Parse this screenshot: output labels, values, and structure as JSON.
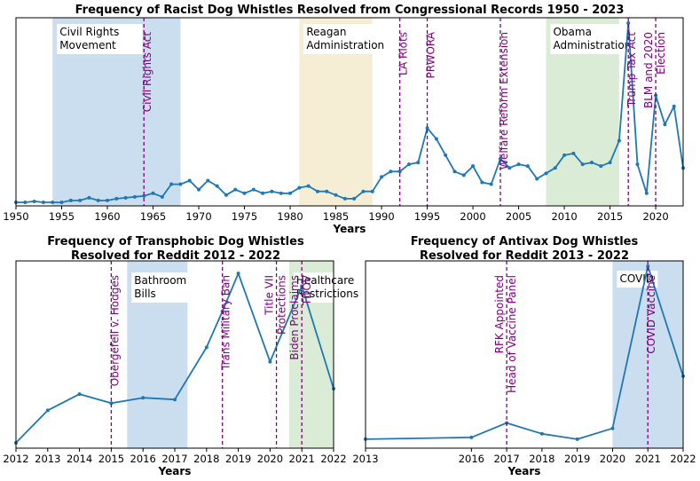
{
  "chart_data": [
    {
      "id": "racist",
      "type": "line",
      "title": "Frequency of Racist Dog Whistles Resolved from Congressional Records 1950 - 2023",
      "xlabel": "Years",
      "ylabel": "",
      "xlim": [
        1950,
        2023
      ],
      "ylim": [
        0,
        1
      ],
      "xticks": [
        1950,
        1955,
        1960,
        1965,
        1970,
        1975,
        1980,
        1985,
        1990,
        1995,
        2000,
        2005,
        2010,
        2015,
        2020
      ],
      "x": [
        1950,
        1951,
        1952,
        1953,
        1954,
        1955,
        1956,
        1957,
        1958,
        1959,
        1960,
        1961,
        1962,
        1963,
        1964,
        1965,
        1966,
        1967,
        1968,
        1969,
        1970,
        1971,
        1972,
        1973,
        1974,
        1975,
        1976,
        1977,
        1978,
        1979,
        1980,
        1981,
        1982,
        1983,
        1984,
        1985,
        1986,
        1987,
        1988,
        1989,
        1990,
        1991,
        1992,
        1993,
        1994,
        1995,
        1996,
        1997,
        1998,
        1999,
        2000,
        2001,
        2002,
        2003,
        2004,
        2005,
        2006,
        2007,
        2008,
        2009,
        2010,
        2011,
        2012,
        2013,
        2014,
        2015,
        2016,
        2017,
        2018,
        2019,
        2020,
        2021,
        2022,
        2023
      ],
      "values": [
        0.01,
        0.01,
        0.015,
        0.01,
        0.01,
        0.01,
        0.02,
        0.02,
        0.035,
        0.02,
        0.02,
        0.03,
        0.035,
        0.04,
        0.045,
        0.06,
        0.04,
        0.11,
        0.11,
        0.13,
        0.08,
        0.13,
        0.1,
        0.05,
        0.08,
        0.06,
        0.08,
        0.06,
        0.07,
        0.06,
        0.06,
        0.09,
        0.1,
        0.07,
        0.07,
        0.05,
        0.03,
        0.03,
        0.07,
        0.07,
        0.15,
        0.18,
        0.18,
        0.22,
        0.23,
        0.42,
        0.36,
        0.27,
        0.18,
        0.16,
        0.21,
        0.12,
        0.11,
        0.25,
        0.2,
        0.22,
        0.21,
        0.14,
        0.17,
        0.2,
        0.27,
        0.28,
        0.22,
        0.23,
        0.21,
        0.23,
        0.35,
        1.0,
        0.22,
        0.06,
        0.6,
        0.44,
        0.54,
        0.2
      ],
      "spans": [
        {
          "start": 1954,
          "end": 1968,
          "label_lines": [
            "Civil Rights",
            "Movement"
          ],
          "color": "#b9d3ea"
        },
        {
          "start": 1981,
          "end": 1989,
          "label_lines": [
            "Reagan",
            "Administration"
          ],
          "color": "#f2e8c6"
        },
        {
          "start": 2008,
          "end": 2016,
          "label_lines": [
            "Obama",
            "Administration"
          ],
          "color": "#cfe6c8"
        }
      ],
      "events": [
        {
          "x": 1964,
          "label": "Civil Rights Act"
        },
        {
          "x": 1992,
          "label": "LA Riots"
        },
        {
          "x": 1995,
          "label": "PRWORA"
        },
        {
          "x": 2003,
          "label": "Welfare Reform Extension"
        },
        {
          "x": 2017,
          "label": "Trump Tax Act"
        },
        {
          "x": 2020,
          "label": "BLM and 2020 Election",
          "label_lines": [
            "BLM and 2020",
            "Election"
          ]
        }
      ]
    },
    {
      "id": "transphobic",
      "type": "line",
      "title": "Frequency of Transphobic Dog Whistles Resolved for Reddit 2012 - 2022",
      "title_lines": [
        "Frequency of Transphobic Dog Whistles",
        "Resolved for Reddit 2012 - 2022"
      ],
      "xlabel": "Years",
      "ylabel": "",
      "xlim": [
        2012,
        2022
      ],
      "ylim": [
        0,
        1
      ],
      "xticks": [
        2012,
        2013,
        2014,
        2015,
        2016,
        2017,
        2018,
        2019,
        2020,
        2021,
        2022
      ],
      "x": [
        2012,
        2013,
        2014,
        2015,
        2016,
        2017,
        2018,
        2018.5,
        2019,
        2020,
        2021,
        2022
      ],
      "values": [
        0.02,
        0.2,
        0.29,
        0.24,
        0.27,
        0.26,
        0.55,
        0.75,
        0.96,
        0.47,
        0.89,
        0.32
      ],
      "spans": [
        {
          "start": 2015.5,
          "end": 2017.4,
          "label_lines": [
            "Bathroom",
            "Bills"
          ],
          "color": "#b9d3ea"
        },
        {
          "start": 2020.6,
          "end": 2022,
          "label_lines": [
            "Healthcare",
            "Restrictions"
          ],
          "color": "#cfe6c8"
        }
      ],
      "events": [
        {
          "x": 2015,
          "label": "Obergefell v. Hodges"
        },
        {
          "x": 2018.5,
          "label": "Trans Military Ban"
        },
        {
          "x": 2020.2,
          "label": "Title VII Protections",
          "label_lines": [
            "Title VII",
            "Protections"
          ]
        },
        {
          "x": 2021,
          "label": "Biden Proclaims TDOV",
          "label_lines": [
            "Biden Proclaims",
            "TDOV"
          ]
        }
      ]
    },
    {
      "id": "antivax",
      "type": "line",
      "title": "Frequency of Antivax Dog Whistles Resolved for Reddit 2013 - 2022",
      "title_lines": [
        "Frequency of Antivax Dog Whistles",
        "Resolved for Reddit 2013 - 2022"
      ],
      "xlabel": "Years",
      "ylabel": "",
      "xlim": [
        2013,
        2022
      ],
      "xticks": [
        2013,
        2016,
        2017,
        2018,
        2019,
        2020,
        2021,
        2022
      ],
      "x": [
        2013,
        2016,
        2017,
        2018,
        2019,
        2020,
        2021,
        2022
      ],
      "values": [
        0.04,
        0.05,
        0.13,
        0.07,
        0.04,
        0.1,
        1.0,
        0.39
      ],
      "ylim": [
        0,
        1
      ],
      "spans": [
        {
          "start": 2020,
          "end": 2022,
          "label_lines": [
            "COVID"
          ],
          "color": "#b9d3ea"
        }
      ],
      "events": [
        {
          "x": 2017,
          "label": "RFK Appointed Head of Vaccine Panel",
          "label_lines": [
            "RFK Appointed",
            "Head of Vaccine Panel"
          ]
        },
        {
          "x": 2021,
          "label": "COVID Vaccine"
        }
      ]
    }
  ]
}
